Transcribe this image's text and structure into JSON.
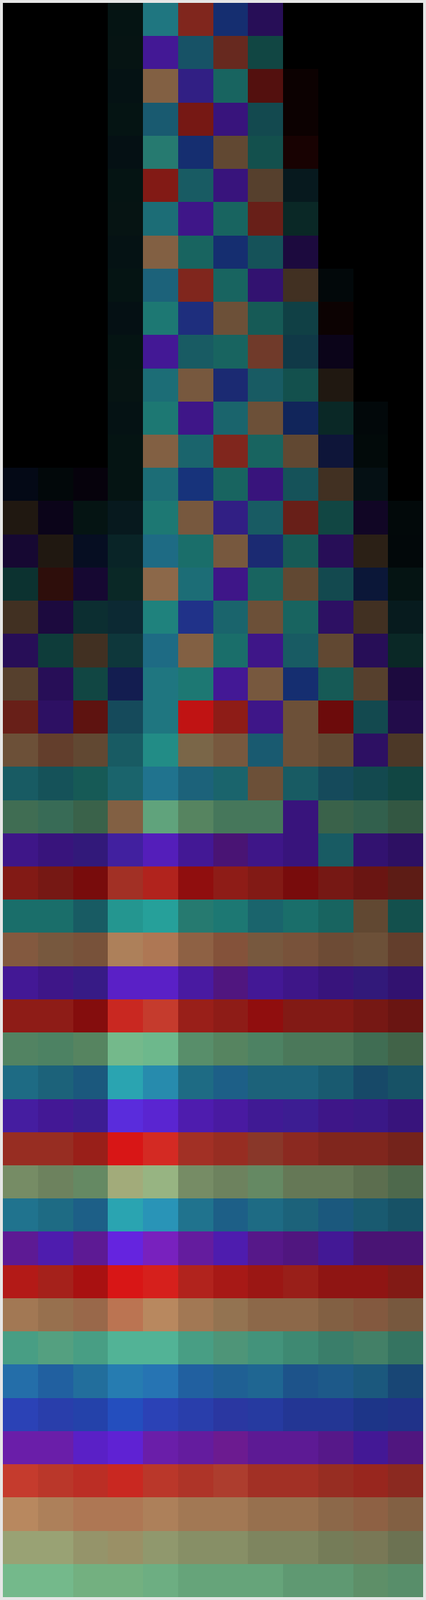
{
  "chart_data": {
    "type": "heatmap",
    "tick_labels": false,
    "phase_lim": [
      0,
      360
    ],
    "magnitude_lim": [
      0,
      1
    ],
    "colors": [
      "#f01818",
      "#d8a070",
      "#90dca0",
      "#30c8c0",
      "#2a5ce0",
      "#7028f8",
      "#f01818"
    ],
    "magnitude": [
      [
        0,
        0,
        0,
        0.1,
        0.65,
        0.55,
        0.5,
        0.35,
        0,
        0,
        0,
        0
      ],
      [
        0,
        0,
        0,
        0.1,
        0.6,
        0.5,
        0.45,
        0.35,
        0,
        0,
        0,
        0
      ],
      [
        0,
        0,
        0,
        0.1,
        0.6,
        0.55,
        0.5,
        0.35,
        0.05,
        0,
        0,
        0
      ],
      [
        0,
        0,
        0,
        0.1,
        0.55,
        0.5,
        0.5,
        0.4,
        0.05,
        0,
        0,
        0
      ],
      [
        0,
        0,
        0,
        0.1,
        0.6,
        0.5,
        0.45,
        0.4,
        0.1,
        0,
        0,
        0
      ],
      [
        0,
        0,
        0,
        0.1,
        0.55,
        0.5,
        0.5,
        0.4,
        0.15,
        0,
        0,
        0
      ],
      [
        0,
        0,
        0,
        0.1,
        0.6,
        0.55,
        0.5,
        0.45,
        0.2,
        0,
        0,
        0
      ],
      [
        0,
        0,
        0,
        0.1,
        0.6,
        0.5,
        0.5,
        0.45,
        0.25,
        0,
        0,
        0
      ],
      [
        0,
        0,
        0,
        0.1,
        0.6,
        0.55,
        0.5,
        0.45,
        0.3,
        0.05,
        0,
        0
      ],
      [
        0,
        0,
        0,
        0.1,
        0.6,
        0.55,
        0.5,
        0.45,
        0.35,
        0.05,
        0,
        0
      ],
      [
        0,
        0,
        0,
        0.1,
        0.6,
        0.5,
        0.5,
        0.5,
        0.35,
        0.1,
        0,
        0
      ],
      [
        0,
        0,
        0,
        0.1,
        0.6,
        0.55,
        0.5,
        0.5,
        0.4,
        0.15,
        0,
        0
      ],
      [
        0,
        0,
        0,
        0.1,
        0.6,
        0.55,
        0.55,
        0.5,
        0.4,
        0.2,
        0.05,
        0
      ],
      [
        0,
        0,
        0,
        0.1,
        0.6,
        0.55,
        0.55,
        0.5,
        0.45,
        0.25,
        0.05,
        0
      ],
      [
        0.1,
        0.05,
        0.05,
        0.1,
        0.6,
        0.55,
        0.5,
        0.5,
        0.45,
        0.3,
        0.1,
        0
      ],
      [
        0.15,
        0.1,
        0.1,
        0.15,
        0.6,
        0.55,
        0.55,
        0.5,
        0.45,
        0.35,
        0.15,
        0.05
      ],
      [
        0.2,
        0.15,
        0.15,
        0.2,
        0.65,
        0.55,
        0.55,
        0.5,
        0.45,
        0.35,
        0.2,
        0.05
      ],
      [
        0.25,
        0.2,
        0.2,
        0.2,
        0.65,
        0.6,
        0.55,
        0.5,
        0.45,
        0.4,
        0.25,
        0.1
      ],
      [
        0.3,
        0.25,
        0.25,
        0.25,
        0.65,
        0.6,
        0.55,
        0.5,
        0.5,
        0.4,
        0.3,
        0.15
      ],
      [
        0.35,
        0.3,
        0.3,
        0.3,
        0.65,
        0.6,
        0.55,
        0.55,
        0.5,
        0.45,
        0.35,
        0.2
      ],
      [
        0.4,
        0.35,
        0.35,
        0.35,
        0.65,
        0.6,
        0.6,
        0.55,
        0.5,
        0.45,
        0.4,
        0.25
      ],
      [
        0.45,
        0.4,
        0.4,
        0.45,
        0.65,
        0.8,
        0.6,
        0.55,
        0.5,
        0.45,
        0.4,
        0.3
      ],
      [
        0.5,
        0.45,
        0.45,
        0.5,
        0.7,
        0.6,
        0.55,
        0.55,
        0.5,
        0.45,
        0.4,
        0.35
      ],
      [
        0.5,
        0.45,
        0.45,
        0.55,
        0.7,
        0.6,
        0.55,
        0.5,
        0.5,
        0.45,
        0.4,
        0.35
      ],
      [
        0.5,
        0.5,
        0.45,
        0.6,
        0.75,
        0.6,
        0.55,
        0.55,
        0.5,
        0.45,
        0.45,
        0.4
      ],
      [
        0.55,
        0.5,
        0.5,
        0.65,
        0.75,
        0.6,
        0.55,
        0.55,
        0.5,
        0.5,
        0.45,
        0.4
      ],
      [
        0.55,
        0.5,
        0.5,
        0.7,
        0.75,
        0.6,
        0.6,
        0.55,
        0.5,
        0.5,
        0.45,
        0.4
      ],
      [
        0.55,
        0.55,
        0.5,
        0.75,
        0.8,
        0.6,
        0.6,
        0.55,
        0.55,
        0.5,
        0.45,
        0.4
      ],
      [
        0.6,
        0.55,
        0.55,
        0.8,
        0.8,
        0.65,
        0.6,
        0.55,
        0.55,
        0.5,
        0.5,
        0.45
      ],
      [
        0.6,
        0.55,
        0.55,
        0.8,
        0.8,
        0.65,
        0.6,
        0.6,
        0.55,
        0.5,
        0.5,
        0.45
      ],
      [
        0.6,
        0.6,
        0.55,
        0.85,
        0.85,
        0.65,
        0.6,
        0.6,
        0.55,
        0.55,
        0.5,
        0.45
      ],
      [
        0.6,
        0.6,
        0.6,
        0.85,
        0.85,
        0.65,
        0.6,
        0.6,
        0.55,
        0.55,
        0.5,
        0.45
      ],
      [
        0.65,
        0.6,
        0.6,
        0.9,
        0.85,
        0.65,
        0.65,
        0.6,
        0.6,
        0.55,
        0.5,
        0.5
      ],
      [
        0.65,
        0.6,
        0.6,
        0.9,
        0.85,
        0.7,
        0.65,
        0.6,
        0.6,
        0.55,
        0.55,
        0.5
      ],
      [
        0.65,
        0.65,
        0.65,
        0.9,
        0.9,
        0.7,
        0.65,
        0.6,
        0.6,
        0.55,
        0.55,
        0.5
      ],
      [
        0.7,
        0.65,
        0.65,
        0.9,
        0.9,
        0.7,
        0.65,
        0.65,
        0.6,
        0.6,
        0.55,
        0.5
      ],
      [
        0.7,
        0.65,
        0.65,
        0.9,
        0.9,
        0.7,
        0.65,
        0.65,
        0.6,
        0.6,
        0.55,
        0.5
      ],
      [
        0.7,
        0.7,
        0.7,
        0.9,
        0.9,
        0.75,
        0.7,
        0.65,
        0.6,
        0.6,
        0.55,
        0.55
      ],
      [
        0.75,
        0.7,
        0.7,
        0.9,
        0.9,
        0.75,
        0.7,
        0.65,
        0.65,
        0.6,
        0.6,
        0.55
      ],
      [
        0.75,
        0.7,
        0.7,
        0.85,
        0.85,
        0.75,
        0.7,
        0.65,
        0.65,
        0.6,
        0.6,
        0.55
      ],
      [
        0.75,
        0.75,
        0.75,
        0.85,
        0.85,
        0.75,
        0.7,
        0.7,
        0.65,
        0.6,
        0.6,
        0.55
      ],
      [
        0.8,
        0.75,
        0.75,
        0.85,
        0.85,
        0.75,
        0.7,
        0.7,
        0.65,
        0.65,
        0.6,
        0.55
      ],
      [
        0.8,
        0.75,
        0.75,
        0.85,
        0.8,
        0.75,
        0.7,
        0.7,
        0.65,
        0.65,
        0.6,
        0.6
      ],
      [
        0.8,
        0.8,
        0.8,
        0.85,
        0.8,
        0.75,
        0.75,
        0.7,
        0.7,
        0.65,
        0.6,
        0.6
      ],
      [
        0.85,
        0.8,
        0.8,
        0.85,
        0.8,
        0.75,
        0.75,
        0.7,
        0.7,
        0.65,
        0.65,
        0.6
      ],
      [
        0.85,
        0.8,
        0.8,
        0.8,
        0.8,
        0.75,
        0.75,
        0.7,
        0.7,
        0.65,
        0.65,
        0.6
      ],
      [
        0.85,
        0.85,
        0.8,
        0.8,
        0.8,
        0.75,
        0.75,
        0.7,
        0.7,
        0.65,
        0.65,
        0.6
      ],
      [
        0.85,
        0.85,
        0.8,
        0.8,
        0.8,
        0.75,
        0.75,
        0.75,
        0.7,
        0.7,
        0.65,
        0.65
      ]
    ],
    "phase": [
      [
        0,
        0,
        0,
        180,
        190,
        20,
        240,
        300,
        0,
        0,
        0,
        0
      ],
      [
        0,
        0,
        0,
        170,
        300,
        200,
        30,
        180,
        0,
        0,
        0,
        0
      ],
      [
        0,
        0,
        0,
        190,
        60,
        280,
        180,
        10,
        0,
        0,
        0,
        0
      ],
      [
        0,
        0,
        0,
        180,
        200,
        10,
        300,
        190,
        0,
        0,
        0,
        0
      ],
      [
        0,
        0,
        0,
        200,
        170,
        240,
        60,
        180,
        0,
        0,
        0,
        0
      ],
      [
        0,
        0,
        0,
        180,
        10,
        190,
        300,
        60,
        200,
        0,
        0,
        0
      ],
      [
        0,
        0,
        0,
        170,
        190,
        300,
        180,
        20,
        180,
        0,
        0,
        0
      ],
      [
        0,
        0,
        0,
        190,
        60,
        180,
        240,
        190,
        300,
        0,
        0,
        0
      ],
      [
        0,
        0,
        0,
        180,
        200,
        20,
        180,
        300,
        60,
        200,
        0,
        0
      ],
      [
        0,
        0,
        0,
        200,
        180,
        250,
        60,
        180,
        190,
        10,
        0,
        0
      ],
      [
        0,
        0,
        0,
        180,
        300,
        190,
        180,
        40,
        200,
        300,
        0,
        0
      ],
      [
        0,
        0,
        0,
        170,
        190,
        60,
        250,
        190,
        180,
        60,
        0,
        0
      ],
      [
        0,
        0,
        0,
        190,
        180,
        300,
        190,
        60,
        240,
        180,
        200,
        0
      ],
      [
        0,
        0,
        0,
        180,
        60,
        190,
        20,
        180,
        60,
        250,
        180,
        0
      ],
      [
        240,
        200,
        300,
        180,
        190,
        240,
        180,
        300,
        190,
        60,
        200,
        0
      ],
      [
        60,
        300,
        180,
        200,
        180,
        60,
        280,
        190,
        20,
        180,
        300,
        190
      ],
      [
        300,
        60,
        240,
        190,
        200,
        180,
        60,
        250,
        180,
        300,
        60,
        200
      ],
      [
        180,
        20,
        300,
        180,
        60,
        190,
        300,
        180,
        60,
        190,
        240,
        180
      ],
      [
        60,
        300,
        190,
        200,
        180,
        250,
        190,
        60,
        180,
        300,
        60,
        190
      ],
      [
        300,
        180,
        60,
        190,
        200,
        60,
        180,
        300,
        190,
        60,
        300,
        180
      ],
      [
        60,
        300,
        180,
        250,
        190,
        180,
        300,
        60,
        240,
        180,
        60,
        300
      ],
      [
        20,
        300,
        10,
        200,
        190,
        0,
        10,
        300,
        60,
        0,
        190,
        300
      ],
      [
        60,
        50,
        60,
        190,
        180,
        70,
        60,
        200,
        60,
        60,
        300,
        60
      ],
      [
        190,
        190,
        180,
        190,
        200,
        200,
        190,
        60,
        190,
        200,
        190,
        180
      ],
      [
        130,
        140,
        130,
        60,
        130,
        120,
        130,
        130,
        300,
        130,
        140,
        130
      ],
      [
        300,
        300,
        290,
        290,
        300,
        300,
        310,
        300,
        300,
        190,
        300,
        300
      ],
      [
        10,
        10,
        0,
        20,
        10,
        0,
        10,
        10,
        0,
        10,
        10,
        20
      ],
      [
        180,
        180,
        190,
        180,
        180,
        170,
        180,
        190,
        180,
        180,
        60,
        180
      ],
      [
        55,
        60,
        55,
        60,
        55,
        55,
        50,
        60,
        55,
        55,
        60,
        50
      ],
      [
        300,
        300,
        290,
        300,
        300,
        300,
        310,
        300,
        300,
        300,
        290,
        300
      ],
      [
        10,
        10,
        0,
        10,
        20,
        10,
        10,
        0,
        10,
        10,
        10,
        10
      ],
      [
        125,
        130,
        120,
        125,
        130,
        125,
        120,
        130,
        125,
        125,
        130,
        120
      ],
      [
        200,
        200,
        210,
        190,
        200,
        200,
        210,
        200,
        200,
        200,
        210,
        200
      ],
      [
        295,
        300,
        290,
        290,
        295,
        300,
        300,
        295,
        290,
        300,
        295,
        300
      ],
      [
        20,
        20,
        10,
        0,
        10,
        20,
        20,
        30,
        20,
        20,
        20,
        20
      ],
      [
        100,
        100,
        110,
        90,
        100,
        100,
        100,
        110,
        100,
        100,
        100,
        110
      ],
      [
        200,
        200,
        210,
        190,
        200,
        200,
        210,
        200,
        200,
        210,
        200,
        200
      ],
      [
        310,
        300,
        310,
        300,
        310,
        310,
        300,
        310,
        310,
        300,
        310,
        310
      ],
      [
        5,
        10,
        0,
        0,
        5,
        10,
        5,
        5,
        10,
        5,
        5,
        10
      ],
      [
        60,
        60,
        55,
        50,
        60,
        60,
        65,
        60,
        60,
        60,
        55,
        60
      ],
      [
        150,
        140,
        150,
        150,
        150,
        150,
        140,
        150,
        150,
        150,
        140,
        150
      ],
      [
        215,
        220,
        210,
        210,
        215,
        220,
        215,
        210,
        220,
        215,
        210,
        220
      ],
      [
        250,
        250,
        245,
        240,
        250,
        250,
        255,
        250,
        250,
        250,
        245,
        250
      ],
      [
        310,
        310,
        300,
        300,
        310,
        310,
        315,
        310,
        310,
        310,
        300,
        310
      ],
      [
        20,
        20,
        15,
        10,
        20,
        20,
        25,
        20,
        20,
        20,
        15,
        20
      ],
      [
        60,
        60,
        55,
        55,
        60,
        60,
        60,
        60,
        60,
        60,
        55,
        60
      ],
      [
        90,
        90,
        85,
        80,
        90,
        90,
        90,
        90,
        90,
        90,
        85,
        90
      ],
      [
        125,
        125,
        120,
        120,
        125,
        125,
        125,
        125,
        125,
        125,
        120,
        125
      ]
    ]
  }
}
